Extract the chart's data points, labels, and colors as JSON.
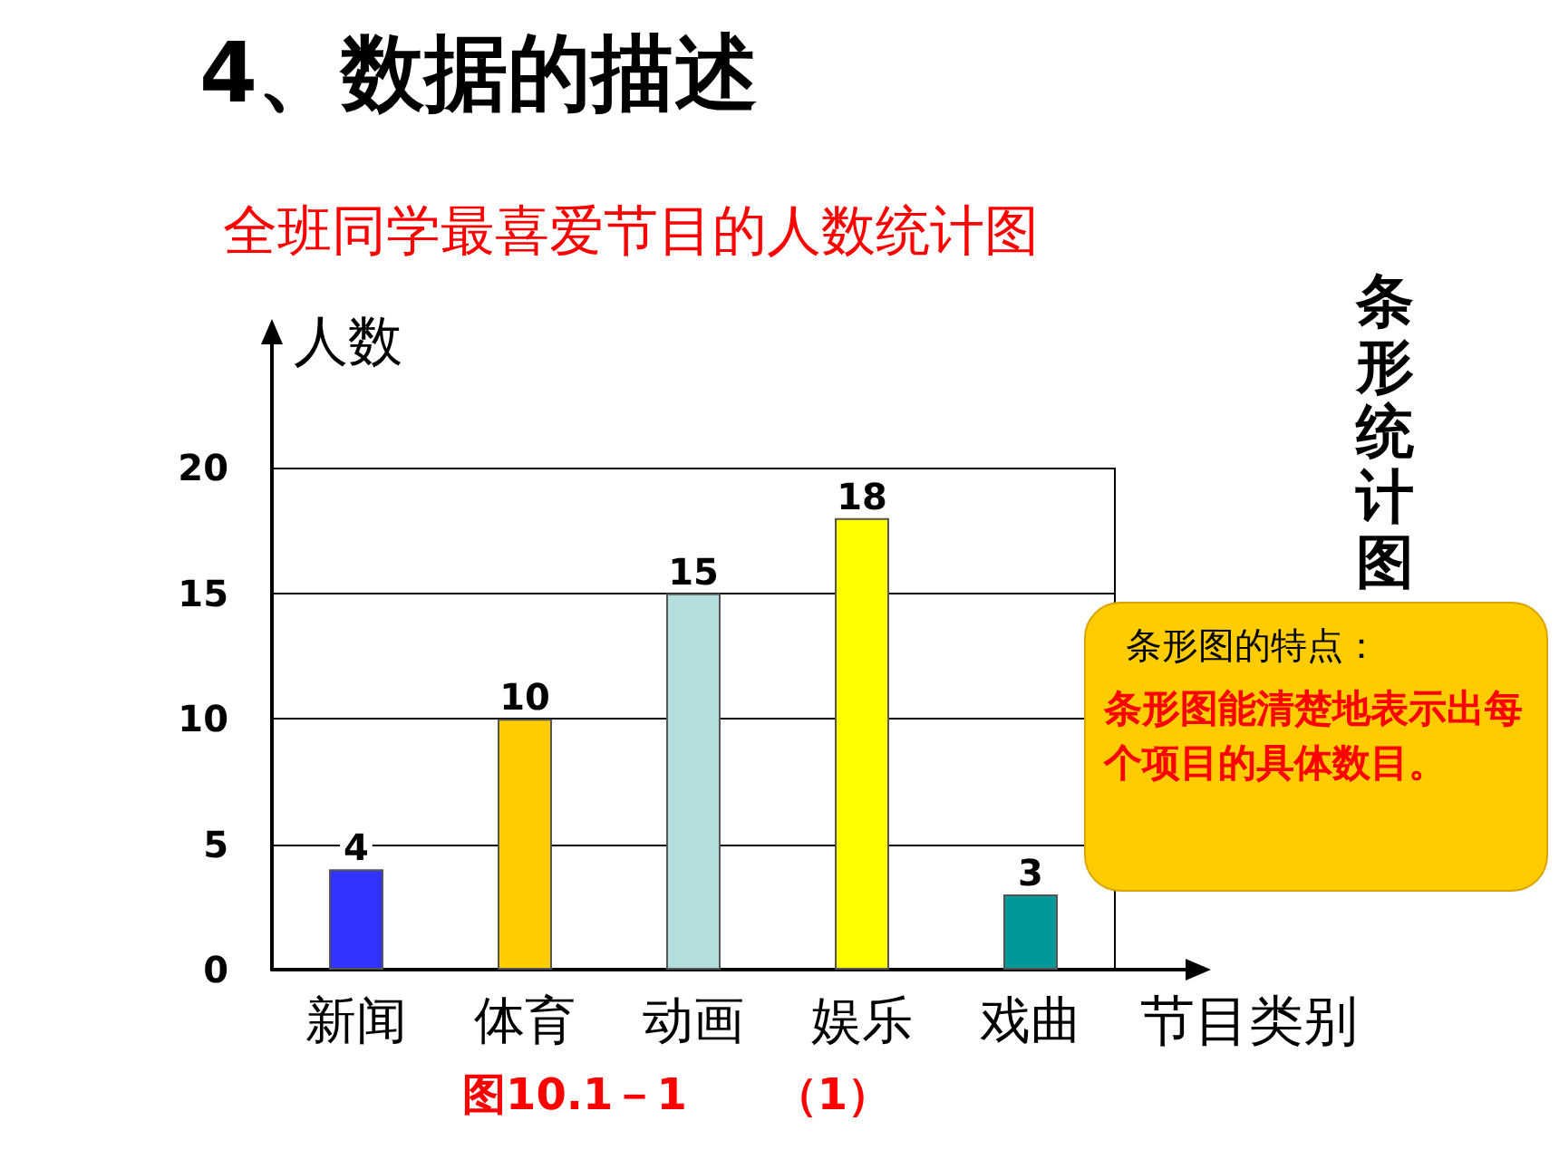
{
  "chart_data": {
    "type": "bar",
    "title": "4、数据的描述",
    "subtitle": "全班同学最喜爱节目的人数统计图",
    "ylabel": "人数",
    "xlabel": "节目类别",
    "categories": [
      "新闻",
      "体育",
      "动画",
      "娱乐",
      "戏曲"
    ],
    "values": [
      4,
      10,
      15,
      18,
      3
    ],
    "colors": [
      "#3333ff",
      "#ffcc00",
      "#b3dede",
      "#ffff00",
      "#009999"
    ],
    "ylim": [
      0,
      25
    ],
    "yticks": [
      0,
      5,
      10,
      15,
      20
    ],
    "grid": "y",
    "data_labels": true,
    "annotations": [
      "条形统计图",
      "条形图的特点：",
      "条形图能清楚地表示出每个项目的具体数目。",
      "图10.1－1　　（1）"
    ]
  }
}
